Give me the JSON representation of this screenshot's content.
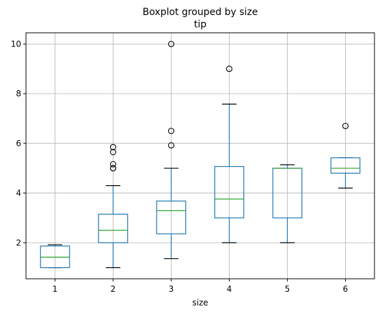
{
  "chart_data": {
    "type": "box",
    "title": "Boxplot grouped by size",
    "subtitle": "tip",
    "xlabel": "size",
    "ylabel": "",
    "grid": true,
    "ylim": [
      0.55,
      10.45
    ],
    "yticks": [
      2,
      4,
      6,
      8,
      10
    ],
    "categories": [
      "1",
      "2",
      "3",
      "4",
      "5",
      "6"
    ],
    "boxes": [
      {
        "category": "1",
        "whisker_low": 1.0,
        "q1": 1.0,
        "median": 1.42,
        "q3": 1.87,
        "whisker_high": 1.92,
        "outliers": []
      },
      {
        "category": "2",
        "whisker_low": 1.0,
        "q1": 2.0,
        "median": 2.5,
        "q3": 3.15,
        "whisker_high": 4.3,
        "outliers": [
          5.0,
          5.0,
          5.16,
          5.65,
          5.85
        ]
      },
      {
        "category": "3",
        "whisker_low": 1.36,
        "q1": 2.36,
        "median": 3.29,
        "q3": 3.68,
        "whisker_high": 5.0,
        "outliers": [
          5.92,
          6.5,
          10.0
        ]
      },
      {
        "category": "4",
        "whisker_low": 2.0,
        "q1": 3.0,
        "median": 3.76,
        "q3": 5.07,
        "whisker_high": 7.58,
        "outliers": [
          9.0
        ]
      },
      {
        "category": "5",
        "whisker_low": 2.0,
        "q1": 3.0,
        "median": 5.0,
        "q3": 5.0,
        "whisker_high": 5.14,
        "outliers": []
      },
      {
        "category": "6",
        "whisker_low": 4.2,
        "q1": 4.8,
        "median": 5.0,
        "q3": 5.42,
        "whisker_high": 5.42,
        "outliers": [
          6.7
        ]
      }
    ],
    "colors": {
      "box": "#1f77b4",
      "median": "#2ca02c",
      "whisker": "#1f77b4",
      "cap": "#000000",
      "outlier": "#000000",
      "grid": "#b0b0b0"
    }
  }
}
